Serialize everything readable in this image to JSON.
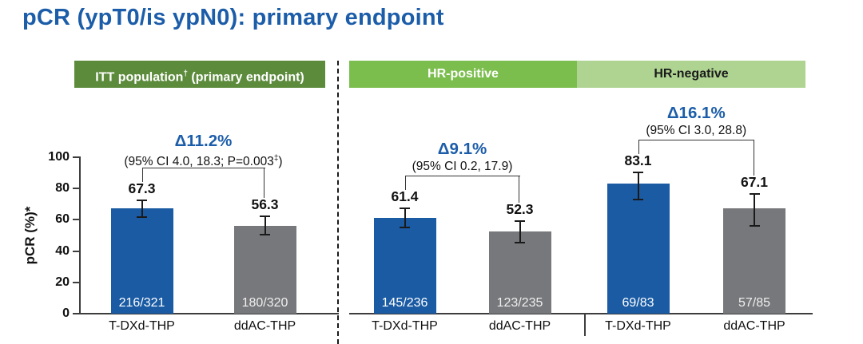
{
  "title": "pCR (ypT0/is ypN0): primary endpoint",
  "colors": {
    "title_blue": "#1C5DA9",
    "delta_blue": "#1C5DA9",
    "bar_blue": "#1A5BA4",
    "bar_gray": "#77787B",
    "itt_header_green": "#5C8B3C",
    "hr_positive_green": "#7CBE4E",
    "hr_negative_green": "#AFD492"
  },
  "chart_data": {
    "type": "bar",
    "title": "pCR (ypT0/is ypN0): primary endpoint",
    "xlabel": "",
    "ylabel": "pCR (%)*",
    "ylim": [
      0,
      100
    ],
    "yticks": [
      0,
      20,
      40,
      60,
      80,
      100
    ],
    "grid": false,
    "legend_position": "none",
    "groups": [
      {
        "header": "ITT population† (primary endpoint)",
        "header_pre": "ITT population",
        "header_sup": "†",
        "header_post": " (primary endpoint)",
        "delta": "Δ11.2%",
        "ci": "(95% CI 4.0, 18.3; P=0.003‡)",
        "ci_pre": "(95% CI 4.0, 18.3; P=0.003",
        "ci_sup": "‡",
        "ci_post": ")",
        "bars": [
          {
            "label": "T-DXd-THP",
            "value": 67.3,
            "fraction": "216/321",
            "err_low": 61.5,
            "err_high": 72.5,
            "color": "#1A5BA4",
            "fraction_color": "#FFFFFF"
          },
          {
            "label": "ddAC-THP",
            "value": 56.3,
            "fraction": "180/320",
            "err_low": 50.5,
            "err_high": 62.0,
            "color": "#77787B",
            "fraction_color": "#EFEFEF"
          }
        ]
      },
      {
        "header": "HR-positive",
        "header_pre": "HR-positive",
        "header_sup": "",
        "header_post": "",
        "delta": "Δ9.1%",
        "ci": "(95% CI 0.2, 17.9)",
        "ci_pre": "(95% CI 0.2, 17.9)",
        "ci_sup": "",
        "ci_post": "",
        "bars": [
          {
            "label": "T-DXd-THP",
            "value": 61.4,
            "fraction": "145/236",
            "err_low": 55.0,
            "err_high": 67.5,
            "color": "#1A5BA4",
            "fraction_color": "#FFFFFF"
          },
          {
            "label": "ddAC-THP",
            "value": 52.3,
            "fraction": "123/235",
            "err_low": 45.5,
            "err_high": 59.0,
            "color": "#77787B",
            "fraction_color": "#EFEFEF"
          }
        ]
      },
      {
        "header": "HR-negative",
        "header_pre": "HR-negative",
        "header_sup": "",
        "header_post": "",
        "delta": "Δ16.1%",
        "ci": "(95% CI 3.0, 28.8)",
        "ci_pre": "(95% CI 3.0, 28.8)",
        "ci_sup": "",
        "ci_post": "",
        "bars": [
          {
            "label": "T-DXd-THP",
            "value": 83.1,
            "fraction": "69/83",
            "err_low": 73.0,
            "err_high": 90.5,
            "color": "#1A5BA4",
            "fraction_color": "#FFFFFF"
          },
          {
            "label": "ddAC-THP",
            "value": 67.1,
            "fraction": "57/85",
            "err_low": 56.0,
            "err_high": 76.5,
            "color": "#77787B",
            "fraction_color": "#EFEFEF"
          }
        ]
      }
    ]
  }
}
